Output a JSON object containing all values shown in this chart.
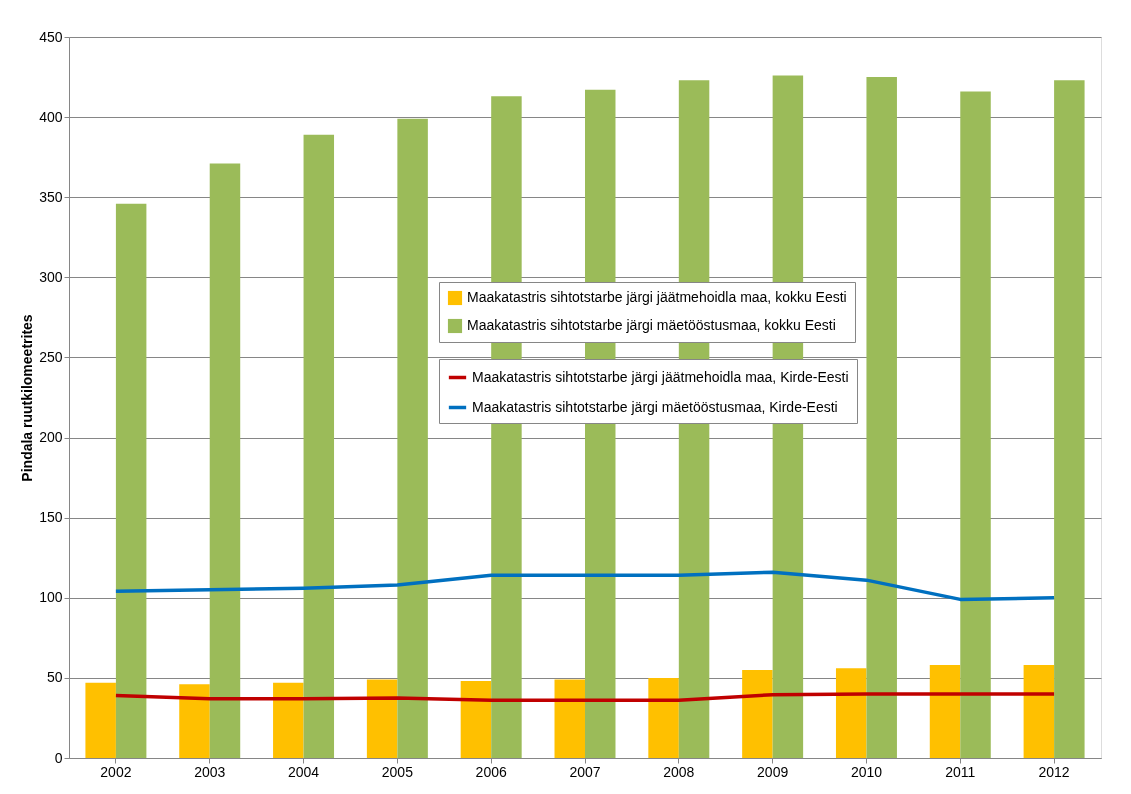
{
  "chart_data": {
    "type": "bar",
    "ylabel": "Pindala ruutkilomeetrites",
    "categories": [
      "2002",
      "2003",
      "2004",
      "2005",
      "2006",
      "2007",
      "2008",
      "2009",
      "2010",
      "2011",
      "2012"
    ],
    "series": [
      {
        "name": "Maakatastris sihtotstarbe järgi jäätmehoidla maa, kokku Eesti",
        "color": "#ffc000",
        "values": [
          47,
          46,
          47,
          49,
          48,
          49,
          50,
          55,
          56,
          58,
          58
        ]
      },
      {
        "name": "Maakatastris sihtotstarbe järgi mäetööstusmaa, kokku Eesti",
        "color": "#9bbb59",
        "values": [
          346,
          371,
          389,
          399,
          413,
          417,
          423,
          426,
          425,
          416,
          423
        ]
      },
      {
        "name": "Maakatastris sihtotstarbe järgi jäätmehoidla maa, Kirde-Eesti",
        "type": "line",
        "color": "#c00000",
        "values": [
          39,
          37,
          37,
          37.5,
          36,
          36,
          36,
          39.5,
          40,
          40,
          40
        ]
      },
      {
        "name": "Maakatastris sihtotstarbe järgi mäetööstusmaa, Kirde-Eesti",
        "type": "line",
        "color": "#0070c0",
        "values": [
          104,
          105,
          106,
          108,
          114,
          114,
          114,
          116,
          111,
          99,
          100
        ]
      }
    ],
    "ylim": [
      0,
      450
    ],
    "yticks": [
      0,
      50,
      100,
      150,
      200,
      250,
      300,
      350,
      400,
      450
    ],
    "grid": "y",
    "legend": "right",
    "marker": "none",
    "line_style": "solid"
  }
}
